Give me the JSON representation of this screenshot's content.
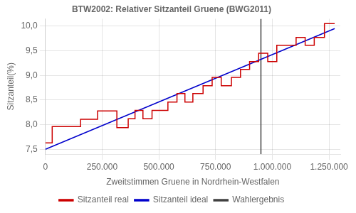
{
  "chart_data": {
    "type": "line",
    "title": "BTW2002: Relativer Sitzanteil Gruene (BWG2011)",
    "xlabel": "Zweitstimmen Gruene in Nordrhein-Westfalen",
    "ylabel": "Sitzanteil(%)",
    "xlim": [
      0,
      1300000
    ],
    "ylim": [
      7.4,
      10.15
    ],
    "xticks": [
      0,
      {
        "value": 250000,
        "label": "250.000"
      },
      {
        "value": 500000,
        "label": "500.000"
      },
      {
        "value": 750000,
        "label": "750.000"
      },
      {
        "value": 1000000,
        "label": "1.000.000"
      },
      {
        "value": 1250000,
        "label": "1.250.000"
      }
    ],
    "yticks": [
      {
        "value": 7.5,
        "label": "7,5"
      },
      {
        "value": 8.0,
        "label": "8,0"
      },
      {
        "value": 8.5,
        "label": "8,5"
      },
      {
        "value": 9.0,
        "label": "9,0"
      },
      {
        "value": 9.5,
        "label": "9,5"
      },
      {
        "value": 10.0,
        "label": "10,0"
      }
    ],
    "grid": true,
    "legend": "bottom",
    "series": [
      {
        "name": "Sitzanteil real",
        "color": "#cc0000",
        "x": [
          0,
          30000,
          30001,
          95000,
          95001,
          155000,
          155001,
          195000,
          195001,
          230000,
          230001,
          280000,
          280001,
          315000,
          315001,
          365000,
          365001,
          395000,
          395001,
          430000,
          430001,
          470000,
          470001,
          505000,
          505001,
          540000,
          540001,
          580000,
          580001,
          615000,
          615001,
          650000,
          650001,
          695000,
          695001,
          735000,
          735001,
          775000,
          775001,
          820000,
          820001,
          860000,
          860001,
          900000,
          900001,
          940000,
          940001,
          980000,
          980001,
          1020000,
          1020001,
          1065000,
          1065001,
          1105000,
          1105001,
          1145000,
          1145001,
          1185000,
          1185001,
          1230000,
          1230001,
          1275000
        ],
        "values": [
          7.63,
          7.63,
          7.96,
          7.96,
          7.96,
          7.96,
          8.11,
          8.11,
          8.11,
          8.11,
          8.28,
          8.28,
          8.28,
          8.28,
          7.94,
          7.94,
          8.12,
          8.12,
          8.29,
          8.29,
          8.12,
          8.12,
          8.29,
          8.29,
          8.29,
          8.29,
          8.46,
          8.46,
          8.63,
          8.63,
          8.46,
          8.46,
          8.63,
          8.63,
          8.79,
          8.79,
          8.96,
          8.96,
          8.79,
          8.79,
          8.96,
          8.96,
          9.12,
          9.12,
          9.28,
          9.28,
          9.45,
          9.45,
          9.28,
          9.28,
          9.61,
          9.61,
          9.61,
          9.61,
          9.77,
          9.77,
          9.61,
          9.61,
          9.77,
          9.77,
          10.05,
          10.05
        ]
      },
      {
        "name": "Sitzanteil ideal",
        "color": "#0000cc",
        "x": [
          0,
          1275000
        ],
        "values": [
          7.5,
          9.95
        ]
      },
      {
        "name": "Wahlergebnis",
        "color": "#404040",
        "type": "vline",
        "x": 950000
      }
    ]
  }
}
